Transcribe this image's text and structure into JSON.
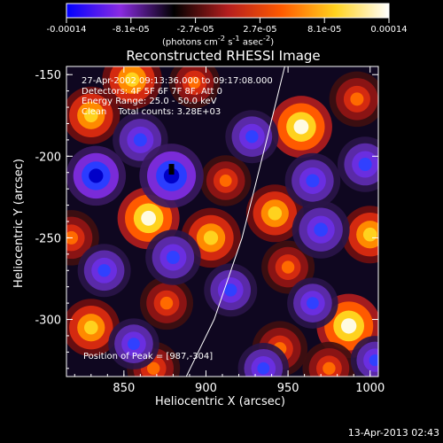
{
  "colorbar": {
    "tick_labels": [
      "-0.00014",
      "-8.1e-05",
      "-2.7e-05",
      "2.7e-05",
      "8.1e-05",
      "0.00014"
    ],
    "units_html": "(photons cm<sup>-2</sup> s<sup>-1</sup> asec<sup>-2</sup>)",
    "range": [
      -0.00014,
      0.00014
    ],
    "colors": [
      "#0000ff",
      "#8a2be2",
      "#000000",
      "#b41e1e",
      "#ff5a00",
      "#ffd21e",
      "#ffffff"
    ]
  },
  "chart_data": {
    "type": "heatmap",
    "title": "Reconstructed RHESSI Image",
    "xlabel": "Heliocentric X (arcsec)",
    "ylabel": "Heliocentric Y (arcsec)",
    "xlim": [
      815,
      1005
    ],
    "ylim": [
      -335,
      -145
    ],
    "x_ticks": [
      850,
      900,
      950,
      1000
    ],
    "y_ticks": [
      -150,
      -200,
      -250,
      -300
    ],
    "annotations": [
      "27-Apr-2002 09:13:36.000 to 09:17:08.000",
      "Detectors: 4F 5F 6F 7F 8F, Att 0",
      "Energy Range: 25.0 - 50.0 keV",
      "Clean    Total counts: 3.28E+03"
    ],
    "peak_label": "Position of Peak = [987,-304]",
    "peak": [
      987,
      -304
    ],
    "limb_curve": [
      [
        888,
        -335
      ],
      [
        905,
        -300
      ],
      [
        922,
        -250
      ],
      [
        937,
        -190
      ],
      [
        948,
        -145
      ]
    ],
    "blobs": [
      {
        "x": 830,
        "y": -175,
        "v": 0.00011
      },
      {
        "x": 855,
        "y": -153,
        "v": 0.00012
      },
      {
        "x": 893,
        "y": -155,
        "v": 8e-05
      },
      {
        "x": 865,
        "y": -238,
        "v": 0.00013
      },
      {
        "x": 818,
        "y": -250,
        "v": 0.0001
      },
      {
        "x": 830,
        "y": -305,
        "v": 0.00011
      },
      {
        "x": 876,
        "y": -290,
        "v": 9e-05
      },
      {
        "x": 868,
        "y": -330,
        "v": 9e-05
      },
      {
        "x": 903,
        "y": -250,
        "v": 0.00012
      },
      {
        "x": 912,
        "y": -215,
        "v": 8e-05
      },
      {
        "x": 958,
        "y": -182,
        "v": 0.00013
      },
      {
        "x": 992,
        "y": -165,
        "v": 0.0001
      },
      {
        "x": 942,
        "y": -235,
        "v": 0.00011
      },
      {
        "x": 950,
        "y": -268,
        "v": 9e-05
      },
      {
        "x": 945,
        "y": -318,
        "v": 0.0001
      },
      {
        "x": 987,
        "y": -304,
        "v": 0.00014
      },
      {
        "x": 1000,
        "y": -248,
        "v": 0.00011
      },
      {
        "x": 975,
        "y": -330,
        "v": 9e-05
      },
      {
        "x": 860,
        "y": -190,
        "v": -0.0001
      },
      {
        "x": 833,
        "y": -212,
        "v": -0.00012
      },
      {
        "x": 879,
        "y": -212,
        "v": -0.00014
      },
      {
        "x": 838,
        "y": -270,
        "v": -9e-05
      },
      {
        "x": 880,
        "y": -262,
        "v": -0.0001
      },
      {
        "x": 856,
        "y": -315,
        "v": -8e-05
      },
      {
        "x": 928,
        "y": -188,
        "v": -9e-05
      },
      {
        "x": 915,
        "y": -282,
        "v": -9e-05
      },
      {
        "x": 965,
        "y": -215,
        "v": -0.0001
      },
      {
        "x": 970,
        "y": -245,
        "v": -0.00011
      },
      {
        "x": 997,
        "y": -205,
        "v": -0.0001
      },
      {
        "x": 965,
        "y": -290,
        "v": -8e-05
      },
      {
        "x": 935,
        "y": -330,
        "v": -8e-05
      },
      {
        "x": 1003,
        "y": -325,
        "v": -7e-05
      }
    ]
  },
  "footer": {
    "timestamp": "13-Apr-2013 02:43"
  }
}
